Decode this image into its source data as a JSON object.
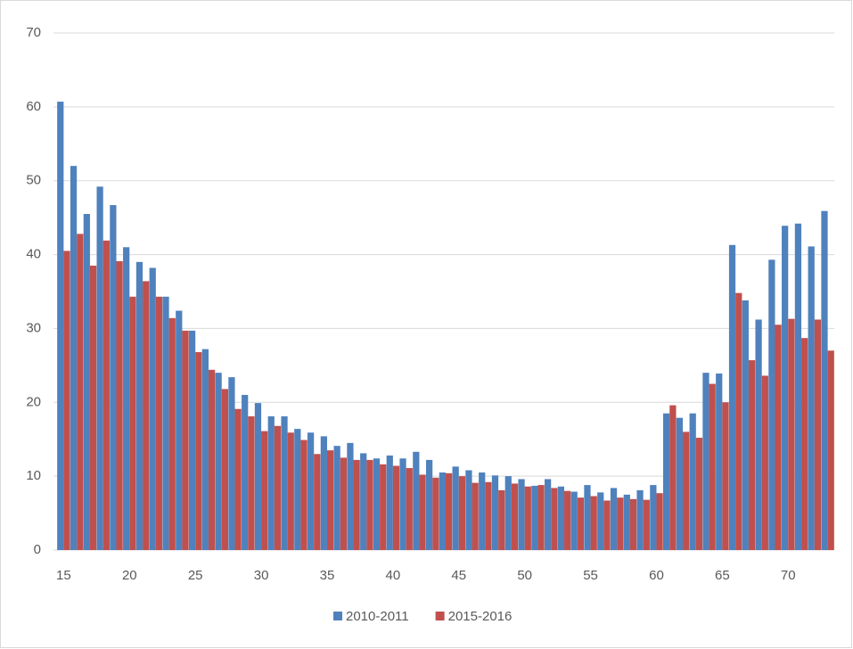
{
  "chart_data": {
    "type": "bar",
    "categories": [
      15,
      null,
      null,
      null,
      null,
      20,
      null,
      null,
      null,
      null,
      25,
      null,
      null,
      null,
      null,
      30,
      null,
      null,
      null,
      null,
      35,
      null,
      null,
      null,
      null,
      40,
      null,
      null,
      null,
      null,
      45,
      null,
      null,
      null,
      null,
      50,
      null,
      null,
      null,
      null,
      55,
      null,
      null,
      null,
      null,
      60,
      null,
      null,
      null,
      null,
      65,
      null,
      null,
      null,
      null,
      70,
      null,
      null,
      null
    ],
    "series": [
      {
        "name": "2010-2011",
        "color": "#4f81bd",
        "values": [
          60.7,
          52,
          45.5,
          49.2,
          46.7,
          41,
          39,
          38.2,
          34.3,
          32.4,
          29.7,
          27.2,
          24,
          23.4,
          21,
          19.9,
          18.1,
          18.1,
          16.4,
          15.9,
          15.4,
          14.1,
          14.5,
          13.1,
          12.4,
          12.8,
          12.4,
          13.3,
          12.2,
          10.5,
          11.3,
          10.8,
          10.5,
          10.1,
          10,
          9.6,
          8.7,
          9.6,
          8.6,
          7.9,
          8.8,
          7.8,
          8.4,
          7.5,
          8.1,
          8.8,
          18.5,
          17.9,
          18.5,
          24,
          23.9,
          41.3,
          33.8,
          31.2,
          39.3,
          43.9,
          44.2,
          41.1,
          45.9
        ]
      },
      {
        "name": "2015-2016",
        "color": "#c0504d",
        "values": [
          40.5,
          42.8,
          38.5,
          41.9,
          39.1,
          34.3,
          36.4,
          34.3,
          31.4,
          29.7,
          26.8,
          24.4,
          21.8,
          19.1,
          18.1,
          16.1,
          16.8,
          15.9,
          14.9,
          13,
          13.5,
          12.5,
          12.2,
          12.2,
          11.6,
          11.4,
          11.1,
          10.2,
          9.8,
          10.4,
          10,
          9.1,
          9.2,
          8.1,
          9,
          8.6,
          8.8,
          8.4,
          8,
          7.1,
          7.3,
          6.7,
          7.1,
          6.9,
          6.8,
          7.7,
          19.6,
          16,
          15.2,
          22.5,
          20,
          34.8,
          25.7,
          23.6,
          30.5,
          31.3,
          28.7,
          31.2,
          27
        ]
      }
    ],
    "ylim": [
      0,
      70
    ],
    "yticks": [
      0,
      10,
      20,
      30,
      40,
      50,
      60,
      70
    ],
    "grid": true,
    "legend": "bottom"
  }
}
